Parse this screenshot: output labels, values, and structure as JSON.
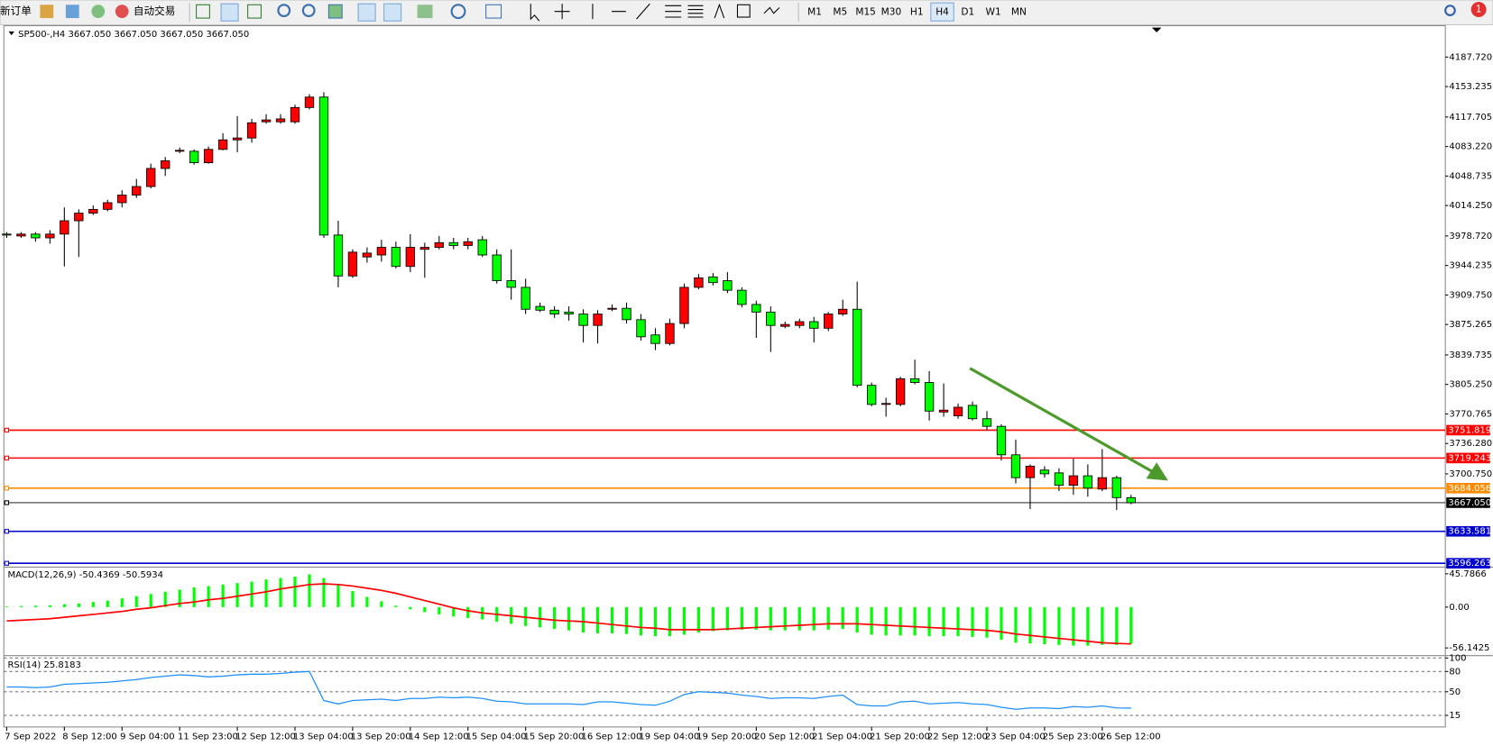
{
  "toolbar": {
    "new_order": "新订单",
    "auto_trading": "自动交易",
    "timeframes": [
      "M1",
      "M5",
      "M15",
      "M30",
      "H1",
      "H4",
      "D1",
      "W1",
      "MN"
    ],
    "active_timeframe": "H4",
    "notifications": 1
  },
  "chart_data": [
    {
      "type": "candlestick",
      "title": "SP500-,H4  3667.050 3667.050 3667.050 3667.050",
      "up_color": "#ff0000",
      "down_color": "#00ff00",
      "categories": [
        "7 Sep 2022",
        null,
        null,
        null,
        "8 Sep 12:00",
        null,
        null,
        null,
        "9 Sep 04:00",
        null,
        null,
        null,
        "11 Sep 23:00",
        null,
        null,
        null,
        "12 Sep 12:00",
        null,
        null,
        null,
        "13 Sep 04:00",
        null,
        null,
        null,
        "13 Sep 20:00",
        null,
        null,
        null,
        "14 Sep 12:00",
        null,
        null,
        null,
        "15 Sep 04:00",
        null,
        null,
        null,
        "15 Sep 20:00",
        null,
        null,
        null,
        "16 Sep 12:00",
        null,
        null,
        null,
        "19 Sep 04:00",
        null,
        null,
        null,
        "19 Sep 20:00",
        null,
        null,
        null,
        "20 Sep 12:00",
        null,
        null,
        null,
        "21 Sep 04:00",
        null,
        null,
        null,
        "21 Sep 20:00",
        null,
        null,
        null,
        "22 Sep 12:00",
        null,
        null,
        null,
        "23 Sep 04:00",
        null,
        null,
        null,
        "25 Sep 23:00",
        null,
        null,
        null,
        "26 Sep 12:00",
        null,
        null
      ],
      "open": [
        3980.9,
        3978.7,
        3980.9,
        3976.5,
        3980.9,
        3996.5,
        4005.4,
        4009.8,
        4017.6,
        4026.5,
        4036.5,
        4057.6,
        4077.7,
        4077.7,
        4064.3,
        4079.9,
        4091.0,
        4093.2,
        4112.1,
        4112.1,
        4112.1,
        4128.8,
        4141.0,
        3979.8,
        3932.0,
        3954.2,
        3956.5,
        3965.4,
        3943.1,
        3963.1,
        3965.4,
        3970.9,
        3967.6,
        3974.3,
        3956.5,
        3926.5,
        3918.7,
        3896.4,
        3892.0,
        3889.8,
        3887.5,
        3874.2,
        3894.2,
        3894.2,
        3880.9,
        3863.1,
        3853.1,
        3876.4,
        3918.7,
        3930.9,
        3926.5,
        3915.3,
        3898.7,
        3889.8,
        3873.1,
        3874.2,
        3878.6,
        3870.9,
        3887.5,
        3893.1,
        3804.2,
        3783.0,
        3781.9,
        3811.9,
        3807.5,
        3773.0,
        3768.6,
        3780.8,
        3765.2,
        3756.3,
        3723.0,
        3696.3,
        3705.2,
        3701.9,
        3687.4,
        3698.5,
        3683.0,
        3696.3,
        3673.0
      ],
      "close": [
        3979.8,
        3980.9,
        3976.5,
        3980.9,
        3996.5,
        4005.4,
        4009.8,
        4017.6,
        4026.5,
        4036.5,
        4057.6,
        4066.5,
        4078.8,
        4064.3,
        4079.9,
        4091.0,
        4093.2,
        4111.0,
        4114.3,
        4115.5,
        4128.8,
        4141.0,
        3979.8,
        3932.0,
        3959.8,
        3958.7,
        3965.4,
        3943.1,
        3965.4,
        3965.4,
        3970.9,
        3967.6,
        3972.0,
        3956.5,
        3926.5,
        3918.7,
        3893.1,
        3892.0,
        3887.5,
        3887.5,
        3874.2,
        3887.5,
        3894.2,
        3880.9,
        3860.9,
        3853.1,
        3876.4,
        3918.7,
        3929.8,
        3924.2,
        3915.3,
        3898.7,
        3889.8,
        3874.2,
        3875.3,
        3878.6,
        3870.9,
        3887.5,
        3893.1,
        3804.2,
        3781.9,
        3783.0,
        3811.9,
        3807.5,
        3774.1,
        3775.2,
        3778.6,
        3765.2,
        3756.3,
        3723.0,
        3696.3,
        3709.7,
        3700.8,
        3687.4,
        3698.5,
        3684.1,
        3696.3,
        3673.0,
        3667.05
      ],
      "high": [
        3983.2,
        3983.2,
        3983.2,
        3985.4,
        4012.1,
        4009.8,
        4014.3,
        4021.0,
        4032.1,
        4045.4,
        4063.2,
        4071.0,
        4082.1,
        4079.9,
        4083.2,
        4098.8,
        4118.8,
        4115.5,
        4121.0,
        4121.0,
        4132.1,
        4144.4,
        4146.6,
        3996.5,
        3963.1,
        3965.4,
        3974.3,
        3972.0,
        3980.9,
        3970.9,
        3978.7,
        3976.5,
        3976.5,
        3978.7,
        3963.1,
        3963.1,
        3928.7,
        3900.9,
        3896.4,
        3896.4,
        3893.1,
        3892.0,
        3898.7,
        3900.9,
        3887.5,
        3870.9,
        3882.0,
        3923.1,
        3934.2,
        3935.3,
        3936.5,
        3918.7,
        3903.1,
        3896.4,
        3878.6,
        3882.0,
        3884.2,
        3889.8,
        3904.2,
        3925.3,
        3807.5,
        3789.7,
        3814.2,
        3834.2,
        3820.8,
        3806.4,
        3783.0,
        3785.3,
        3774.1,
        3758.6,
        3740.8,
        3711.9,
        3709.7,
        3707.4,
        3718.5,
        3711.9,
        3729.7,
        3698.5,
        3676.3
      ],
      "low": [
        3976.5,
        3976.5,
        3972.0,
        3969.8,
        3943.1,
        3954.2,
        4003.2,
        4007.6,
        4012.1,
        4023.2,
        4034.3,
        4048.8,
        4075.4,
        4062.1,
        4063.2,
        4078.8,
        4076.5,
        4087.7,
        4109.9,
        4109.9,
        4109.9,
        4126.6,
        3976.5,
        3918.7,
        3929.8,
        3947.6,
        3948.7,
        3940.9,
        3936.5,
        3929.8,
        3963.1,
        3963.1,
        3963.1,
        3954.2,
        3923.1,
        3904.2,
        3887.5,
        3889.8,
        3883.1,
        3879.8,
        3854.2,
        3853.1,
        3890.9,
        3876.4,
        3856.4,
        3845.3,
        3850.9,
        3870.9,
        3916.4,
        3920.9,
        3912.0,
        3895.3,
        3859.7,
        3843.1,
        3870.9,
        3870.9,
        3854.2,
        3867.5,
        3885.3,
        3801.9,
        3779.7,
        3767.5,
        3779.7,
        3805.3,
        3763.0,
        3767.5,
        3765.2,
        3763.0,
        3751.9,
        3716.3,
        3689.6,
        3659.6,
        3696.3,
        3680.7,
        3676.3,
        3674.1,
        3680.7,
        3658.5,
        3665.2
      ],
      "ylim": [
        3592.9,
        4223.3
      ],
      "yticks": [
        {
          "value": 4187.72,
          "label": "4187.720"
        },
        4153.235,
        4117.705,
        {
          "value": 4083.22,
          "label": "4083.220"
        },
        4048.735,
        {
          "value": 4014.25,
          "label": "4014.250"
        },
        {
          "value": 3978.72,
          "label": "3978.720"
        },
        3944.235,
        {
          "value": 3909.75,
          "label": "3909.750"
        },
        3875.265,
        3839.735,
        {
          "value": 3805.25,
          "label": "3805.250"
        },
        3770.765,
        {
          "value": 3736.28,
          "label": "3736.280"
        },
        {
          "value": 3700.75,
          "label": "3700.750"
        }
      ],
      "price_lines": [
        {
          "value": 3751.819,
          "color": "#ff0000"
        },
        {
          "value": 3719.243,
          "color": "#ff0000"
        },
        {
          "value": 3684.056,
          "color": "#ff8c00"
        },
        {
          "value": 3667.05,
          "label": "3667.050",
          "color": "#000000"
        },
        {
          "value": 3633.581,
          "color": "#0000cc"
        },
        {
          "value": 3596.263,
          "color": "#0000cc"
        }
      ]
    },
    {
      "type": "macd",
      "title": "MACD(12,26,9) -50.4369 -50.5934",
      "ylim": [
        -64.1,
        53.7
      ],
      "yticks": [
        45.7866,
        {
          "value": 0,
          "label": "0.00"
        },
        -56.1425
      ],
      "series": [
        {
          "color": "#00ff00",
          "values": [
            1,
            1.5,
            2,
            2.5,
            4,
            5,
            7,
            9,
            12,
            15,
            18,
            21,
            24,
            27,
            29,
            31,
            33,
            35,
            38,
            40,
            42,
            45,
            40,
            30,
            22,
            14,
            8,
            2,
            -3,
            -7,
            -10,
            -13,
            -15,
            -17,
            -20,
            -23,
            -26,
            -28,
            -30,
            -32,
            -35,
            -36,
            -36,
            -37,
            -39,
            -40,
            -40,
            -38,
            -35,
            -33,
            -32,
            -31,
            -31,
            -32,
            -32,
            -32,
            -32,
            -31,
            -30,
            -35,
            -38,
            -39,
            -39,
            -39,
            -40,
            -40,
            -40,
            -41,
            -42,
            -45,
            -49,
            -50,
            -51,
            -52,
            -53,
            -53,
            -52,
            -52,
            -50.4369
          ]
        },
        {
          "color": "#ff0000",
          "values": [
            -19,
            -18,
            -17,
            -16,
            -14,
            -12,
            -10,
            -8,
            -6,
            -3,
            -1,
            2,
            5,
            7,
            10,
            12,
            15,
            18,
            21,
            25,
            28,
            31,
            32,
            31,
            29,
            26,
            23,
            19,
            14,
            9,
            4,
            -1,
            -5,
            -8,
            -10,
            -12,
            -14,
            -16,
            -18,
            -19,
            -20,
            -22,
            -24,
            -26,
            -28,
            -29,
            -31,
            -31,
            -31,
            -31,
            -30,
            -29,
            -28,
            -27,
            -26,
            -25,
            -24,
            -23,
            -23,
            -23,
            -24,
            -25,
            -26,
            -27,
            -28,
            -29,
            -30,
            -31,
            -32,
            -34,
            -37,
            -39,
            -41,
            -43,
            -45,
            -47,
            -49,
            -50,
            -50.5934
          ]
        }
      ]
    },
    {
      "type": "line",
      "title": "RSI(14) 25.8183",
      "ylim": [
        0,
        100
      ],
      "yticks": [
        100,
        80,
        50,
        15
      ],
      "series": [
        {
          "color": "#1e90ff",
          "values": [
            57,
            57,
            56,
            57,
            61,
            62,
            63,
            64,
            66,
            68,
            71,
            73,
            75,
            74,
            72,
            73,
            75,
            76,
            76,
            77,
            79,
            80,
            37,
            32,
            37,
            38,
            39,
            37,
            40,
            40,
            42,
            41,
            42,
            40,
            36,
            35,
            32,
            32,
            32,
            32,
            31,
            35,
            35,
            33,
            31,
            30,
            36,
            46,
            50,
            49,
            48,
            45,
            43,
            40,
            41,
            41,
            40,
            43,
            45,
            31,
            29,
            29,
            35,
            36,
            32,
            33,
            34,
            32,
            31,
            27,
            24,
            26,
            26,
            25,
            28,
            27,
            29,
            26,
            25.8183
          ]
        }
      ]
    }
  ]
}
